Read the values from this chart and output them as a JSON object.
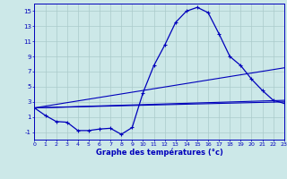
{
  "title": "Graphe des températures (°c)",
  "background_color": "#cce8e8",
  "grid_color": "#aacaca",
  "line_color": "#0000bb",
  "hours": [
    0,
    1,
    2,
    3,
    4,
    5,
    6,
    7,
    8,
    9,
    10,
    11,
    12,
    13,
    14,
    15,
    16,
    17,
    18,
    19,
    20,
    21,
    22,
    23
  ],
  "temp_curve": [
    2.2,
    1.2,
    0.4,
    0.3,
    -0.8,
    -0.8,
    -0.6,
    -0.5,
    -1.3,
    -0.4,
    4.2,
    7.8,
    10.5,
    13.5,
    15.0,
    15.5,
    14.8,
    12.0,
    9.0,
    7.8,
    6.0,
    4.5,
    3.2,
    2.8
  ],
  "ref_lines": [
    {
      "x0": 0,
      "y0": 2.2,
      "x1": 23,
      "y1": 3.0
    },
    {
      "x0": 0,
      "y0": 2.2,
      "x1": 23,
      "y1": 3.2
    },
    {
      "x0": 0,
      "y0": 2.2,
      "x1": 23,
      "y1": 7.5
    }
  ],
  "ylim": [
    -2,
    16
  ],
  "yticks": [
    -1,
    1,
    3,
    5,
    7,
    9,
    11,
    13,
    15
  ],
  "xlim": [
    0,
    23
  ],
  "figsize": [
    3.2,
    2.0
  ],
  "dpi": 100
}
